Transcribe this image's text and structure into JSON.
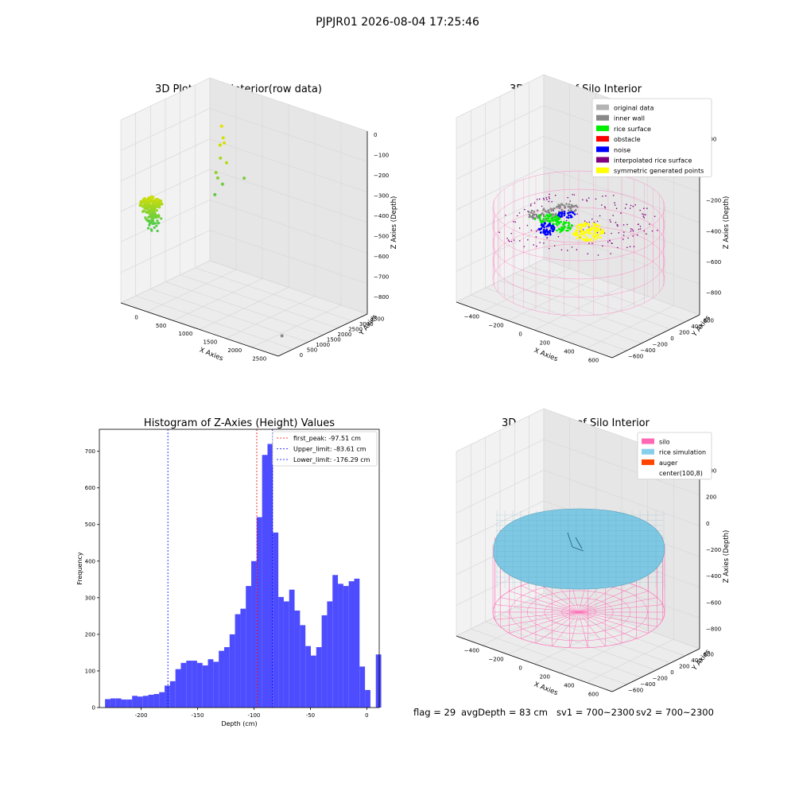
{
  "figure_title": "PJPJR01 2026-08-04 17:25:46",
  "status_line": {
    "flag": "flag = 29",
    "avg_depth": "avgDepth = 83 cm",
    "sv1": "sv1 = 700~2300",
    "sv2": "sv2 = 700~2300"
  },
  "colors": {
    "pane": "#f2f2f2",
    "pane_side": "#e6e6e6",
    "pane_floor": "#ececec",
    "grid": "#d8d8d8",
    "hist_bar": "#4d4dff",
    "first_peak_line": "#ff0000",
    "limit_line": "#0000ff",
    "silo_wire": "#ff69b4",
    "rice_sim": "#7ec8e3"
  },
  "chart_data": [
    {
      "type": "scatter",
      "dimension": "3d",
      "title": "3D Plot of Silo Interior(row data)",
      "xlabel": "X Axies",
      "ylabel": "Y Axies",
      "zlabel": "Z Axies (Depth)",
      "x_ticks": [
        "0",
        "500",
        "1000",
        "1500",
        "2000",
        "2500"
      ],
      "y_ticks": [
        "0",
        "500",
        "1000",
        "1500",
        "2000",
        "2500",
        "3000",
        "3500"
      ],
      "z_ticks": [
        "0",
        "−100",
        "−200",
        "−300",
        "−400",
        "−500",
        "−600",
        "−700",
        "−800"
      ],
      "xlim": [
        -200,
        2700
      ],
      "ylim": [
        -200,
        3700
      ],
      "zlim": [
        -850,
        50
      ],
      "grid": true,
      "points": [
        {
          "x": 100,
          "y": 3500,
          "z": -150,
          "color": "#e6e000"
        },
        {
          "x": 150,
          "y": 3450,
          "z": -200,
          "color": "#d4e000"
        },
        {
          "x": 50,
          "y": 3550,
          "z": -250,
          "color": "#c8e000"
        },
        {
          "x": 120,
          "y": 3400,
          "z": -300,
          "color": "#a8d820"
        },
        {
          "x": 80,
          "y": 3380,
          "z": -400,
          "color": "#88d030"
        },
        {
          "x": 60,
          "y": 3300,
          "z": -480,
          "color": "#60c840"
        },
        {
          "x": 180,
          "y": 3350,
          "z": -420,
          "color": "#70cc38"
        },
        {
          "x": 200,
          "y": 3480,
          "z": -320,
          "color": "#b4dc18"
        },
        {
          "x": 140,
          "y": 3520,
          "z": -230,
          "color": "#dce000"
        },
        {
          "x": 30,
          "y": 3420,
          "z": -380,
          "color": "#90d228"
        },
        {
          "x": 600,
          "y": 3300,
          "z": -350,
          "color": "#80cc40"
        },
        {
          "x": 2600,
          "y": 200,
          "z": -780,
          "color": "#888888"
        }
      ]
    },
    {
      "type": "scatter",
      "dimension": "3d",
      "title": "3D classify of Silo Interior",
      "xlabel": "X Axies",
      "ylabel": "Y Axies",
      "zlabel": "Z Axies (Depth)",
      "x_ticks": [
        "−400",
        "−200",
        "0",
        "200",
        "400",
        "600"
      ],
      "y_ticks": [
        "−600",
        "−400",
        "−200",
        "0",
        "200",
        "400",
        "600"
      ],
      "z_ticks": [
        "200",
        "0",
        "−200",
        "−400",
        "−600",
        "−800"
      ],
      "xlim": [
        -500,
        700
      ],
      "ylim": [
        -650,
        650
      ],
      "zlim": [
        -900,
        350
      ],
      "grid": true,
      "legend_position": "top-right",
      "legend": [
        {
          "label": "original data",
          "color": "#b3b3b3"
        },
        {
          "label": "inner wall",
          "color": "#888888"
        },
        {
          "label": "rice surface",
          "color": "#00ee00"
        },
        {
          "label": "obstacle",
          "color": "#ff0000"
        },
        {
          "label": "noise",
          "color": "#0000ff"
        },
        {
          "label": "interpolated rice surface",
          "color": "#800080"
        },
        {
          "label": "symmetric generated points",
          "color": "#ffff00"
        }
      ],
      "clusters": [
        {
          "class": "inner wall",
          "x": -250,
          "y": 0,
          "z": -250
        },
        {
          "class": "inner wall",
          "x": 50,
          "y": 100,
          "z": -180
        },
        {
          "class": "rice surface",
          "x": -200,
          "y": -100,
          "z": -300
        },
        {
          "class": "rice surface",
          "x": 0,
          "y": -50,
          "z": -330
        },
        {
          "class": "noise",
          "x": -150,
          "y": -200,
          "z": -380
        },
        {
          "class": "noise",
          "x": 100,
          "y": 50,
          "z": -250
        },
        {
          "class": "symmetric generated points",
          "x": 250,
          "y": -200,
          "z": -330
        }
      ]
    },
    {
      "type": "bar",
      "subtype": "histogram",
      "title": "Histogram of Z-Axies (Height) Values",
      "xlabel": "Depth (cm)",
      "ylabel": "Frequency",
      "xlim": [
        -237,
        11
      ],
      "ylim": [
        0,
        760
      ],
      "x_ticks": [
        -200,
        -150,
        -100,
        -50,
        0
      ],
      "y_ticks": [
        0,
        100,
        200,
        300,
        400,
        500,
        600,
        700
      ],
      "bin_start": -232,
      "bin_width": 4.8,
      "values": [
        23,
        25,
        25,
        22,
        22,
        32,
        30,
        32,
        35,
        37,
        42,
        60,
        72,
        105,
        122,
        128,
        128,
        122,
        115,
        132,
        125,
        155,
        165,
        200,
        255,
        270,
        332,
        400,
        520,
        690,
        720,
        478,
        302,
        290,
        322,
        265,
        225,
        168,
        142,
        165,
        252,
        290,
        362,
        338,
        332,
        345,
        352,
        112,
        48,
        0,
        145
      ],
      "grid": false,
      "legend_position": "top-right",
      "vlines": [
        {
          "label": "first_peak: -97.51 cm",
          "x": -97.51,
          "color": "#ff0000"
        },
        {
          "label": "Upper_limit: -83.61 cm",
          "x": -83.61,
          "color": "#0000ff"
        },
        {
          "label": "Lower_limit: -176.29 cm",
          "x": -176.29,
          "color": "#0000ff"
        }
      ]
    },
    {
      "type": "area",
      "dimension": "3d",
      "title": "3D simulation of Silo Interior",
      "xlabel": "X Axies",
      "ylabel": "Y Axies",
      "zlabel": "Z Axies (Depth)",
      "x_ticks": [
        "−400",
        "−200",
        "0",
        "200",
        "400",
        "600"
      ],
      "y_ticks": [
        "−600",
        "−400",
        "−200",
        "0",
        "200",
        "400",
        "600"
      ],
      "z_ticks": [
        "400",
        "200",
        "0",
        "−200",
        "−400",
        "−600",
        "−800"
      ],
      "xlim": [
        -500,
        700
      ],
      "ylim": [
        -650,
        650
      ],
      "zlim": [
        -900,
        450
      ],
      "grid": true,
      "legend_position": "top-right",
      "legend": [
        {
          "label": "silo",
          "color": "#ff69b4"
        },
        {
          "label": "rice simulation",
          "color": "#87ceeb"
        },
        {
          "label": "auger",
          "color": "#ff4500"
        },
        {
          "label": "center(100,8)",
          "color": "#ffffff"
        }
      ]
    }
  ]
}
